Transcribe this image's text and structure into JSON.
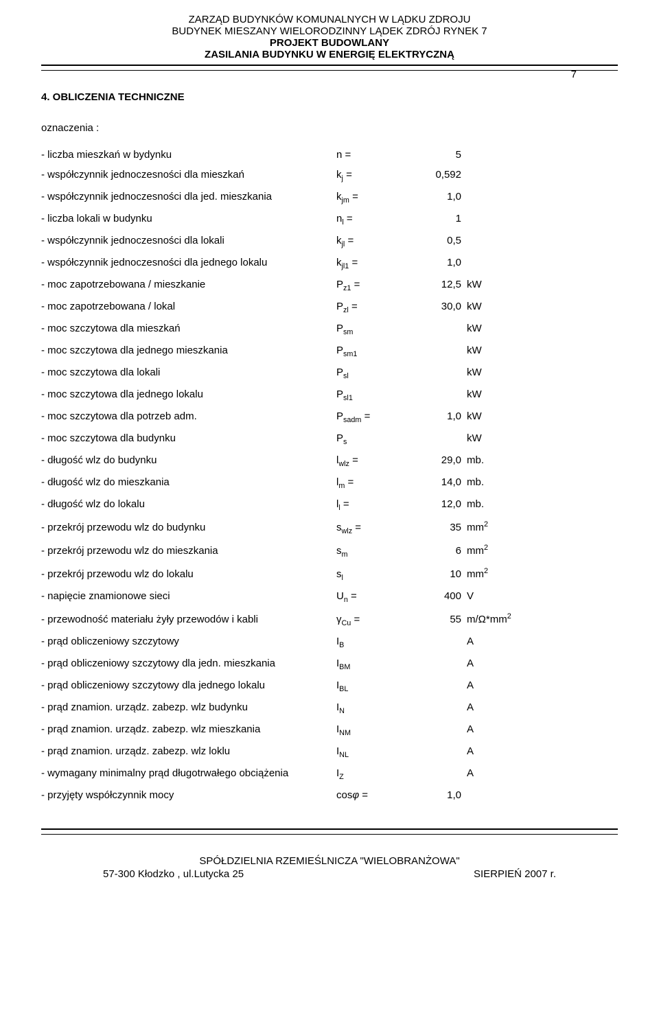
{
  "header": {
    "line1": "ZARZĄD BUDYNKÓW KOMUNALNYCH W LĄDKU ZDROJU",
    "line2": "BUDYNEK MIESZANY WIELORODZINNY LĄDEK ZDRÓJ  RYNEK 7",
    "line3": "PROJEKT BUDOWLANY",
    "line4": "ZASILANIA BUDYNKU W ENERGIĘ ELEKTRYCZNĄ",
    "page": "7"
  },
  "section": {
    "title": "4. OBLICZENIA  TECHNICZNE",
    "sub": "oznaczenia :"
  },
  "rows": [
    {
      "desc": "- liczba mieszkań w bydynku",
      "sym": "n  =",
      "val": "5",
      "unit": ""
    },
    {
      "desc": "- współczynnik jednoczesności dla mieszkań",
      "sym": "k<sub>j</sub>  =",
      "val": "0,592",
      "unit": ""
    },
    {
      "desc": "- współczynnik jednoczesności dla jed. mieszkania",
      "sym": "k<sub>jm</sub>  =",
      "val": "1,0",
      "unit": ""
    },
    {
      "desc": "- liczba lokali w budynku",
      "sym": "n<sub>l</sub>  =",
      "val": "1",
      "unit": ""
    },
    {
      "desc": "- współczynnik jednoczesności dla lokali",
      "sym": "k<sub>jl</sub>  =",
      "val": "0,5",
      "unit": ""
    },
    {
      "desc": "- współczynnik jednoczesności dla jednego lokalu",
      "sym": "k<sub>jl1</sub>  =",
      "val": "1,0",
      "unit": ""
    },
    {
      "desc": "- moc zapotrzebowana / mieszkanie",
      "sym": "P<sub>z1</sub> =",
      "val": "12,5",
      "unit": "kW"
    },
    {
      "desc": "- moc zapotrzebowana / lokal",
      "sym": "P<sub>zl</sub> =",
      "val": "30,0",
      "unit": "kW"
    },
    {
      "desc": "- moc szczytowa dla mieszkań",
      "sym": "P<sub>sm</sub>",
      "val": "",
      "unit": "kW"
    },
    {
      "desc": "- moc szczytowa dla jednego mieszkania",
      "sym": "P<sub>sm1</sub>",
      "val": "",
      "unit": "kW"
    },
    {
      "desc": "- moc szczytowa dla lokali",
      "sym": "P<sub>sl</sub>",
      "val": "",
      "unit": "kW"
    },
    {
      "desc": "- moc szczytowa dla jednego lokalu",
      "sym": "P<sub>sl1</sub>",
      "val": "",
      "unit": "kW"
    },
    {
      "desc": "- moc szczytowa dla potrzeb adm.",
      "sym": "P<sub>sadm</sub>  =",
      "val": "1,0",
      "unit": "kW"
    },
    {
      "desc": "- moc szczytowa dla budynku",
      "sym": "P<sub>s</sub>",
      "val": "",
      "unit": "kW"
    },
    {
      "desc": "- długość wlz do budynku",
      "sym": "l<sub>wlz</sub> =",
      "val": "29,0",
      "unit": "mb."
    },
    {
      "desc": "- długość wlz do mieszkania",
      "sym": "l<sub>m</sub> =",
      "val": "14,0",
      "unit": "mb."
    },
    {
      "desc": "- długość wlz do lokalu",
      "sym": "l<sub>l</sub> =",
      "val": "12,0",
      "unit": "mb."
    },
    {
      "desc": "- przekrój przewodu wlz do budynku",
      "sym": "s<sub>wlz</sub> =",
      "val": "35",
      "unit": "mm<sup>2</sup>"
    },
    {
      "desc": "- przekrój przewodu wlz do mieszkania",
      "sym": "s<sub>m</sub>",
      "val": "6",
      "unit": "mm<sup>2</sup>"
    },
    {
      "desc": "- przekrój przewodu wlz do lokalu",
      "sym": "s<sub>l</sub>",
      "val": "10",
      "unit": "mm<sup>2</sup>"
    },
    {
      "desc": "- napięcie znamionowe sieci",
      "sym": "U<sub>n</sub> =",
      "val": "400",
      "unit": "V"
    },
    {
      "desc": "- przewodność materiału żyły przewodów i kabli",
      "sym": "γ<sub>Cu</sub>   =",
      "val": "55",
      "unit": "m/Ω*mm<sup>2</sup>"
    },
    {
      "desc": "- prąd obliczeniowy szczytowy",
      "sym": "I<sub>B</sub>",
      "val": "",
      "unit": "A"
    },
    {
      "desc": "- prąd obliczeniowy szczytowy dla jedn. mieszkania",
      "sym": "I<sub>BM</sub>",
      "val": "",
      "unit": "A"
    },
    {
      "desc": "- prąd obliczeniowy szczytowy dla jednego lokalu",
      "sym": "I<sub>BL</sub>",
      "val": "",
      "unit": "A"
    },
    {
      "desc": "- prąd znamion. urządz. zabezp. wlz budynku",
      "sym": "I<sub>N</sub>",
      "val": "",
      "unit": "A"
    },
    {
      "desc": "- prąd znamion. urządz. zabezp. wlz mieszkania",
      "sym": "I<sub>NM</sub>",
      "val": "",
      "unit": "A"
    },
    {
      "desc": "- prąd znamion. urządz. zabezp. wlz loklu",
      "sym": "I<sub>NL</sub>",
      "val": "",
      "unit": "A"
    },
    {
      "desc": "- wymagany minimalny prąd długotrwałego obciążenia",
      "sym": "I<sub>Z</sub>",
      "val": "",
      "unit": "A"
    },
    {
      "desc": "- przyjęty współczynnik mocy",
      "sym": "cos<i>φ</i> =",
      "val": "1,0",
      "unit": ""
    }
  ],
  "footer": {
    "line1": "SPÓŁDZIELNIA RZEMIEŚLNICZA \"WIELOBRANŻOWA\"",
    "left": "57-300 Kłodzko , ul.Lutycka 25",
    "right": "SIERPIEŃ  2007 r."
  }
}
